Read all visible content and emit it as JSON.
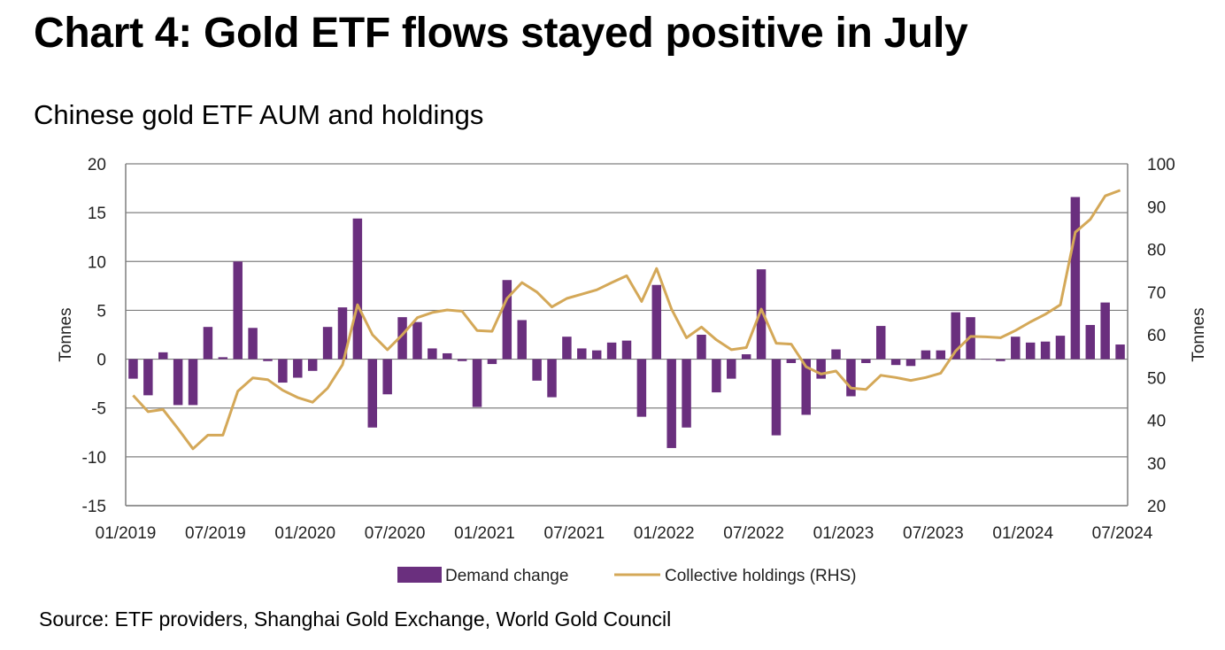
{
  "header": {
    "title": "Chart 4: Gold ETF flows stayed positive in July",
    "subtitle": "Chinese gold ETF AUM and holdings"
  },
  "footer": {
    "source": "Source: ETF providers, Shanghai Gold Exchange, World Gold Council"
  },
  "colors": {
    "bars": "#6a2f7e",
    "line": "#d4a858",
    "grid": "#808080",
    "axis": "#7f7f7f"
  },
  "chart_data": {
    "type": "bar",
    "title": "Chart 4: Gold ETF flows stayed positive in July",
    "subtitle": "Chinese gold ETF AUM and holdings",
    "ylabel": "Tonnes",
    "y2label": "Tonnes",
    "ylim": [
      -15,
      20
    ],
    "y2lim": [
      20,
      100
    ],
    "yticks": [
      "20",
      "15",
      "10",
      "5",
      "0",
      "-5",
      "-10",
      "-15"
    ],
    "y2ticks": [
      "100",
      "90",
      "80",
      "70",
      "60",
      "50",
      "40",
      "30",
      "20"
    ],
    "xtick_labels": [
      "01/2019",
      "07/2019",
      "01/2020",
      "07/2020",
      "01/2021",
      "07/2021",
      "01/2022",
      "07/2022",
      "01/2023",
      "07/2023",
      "01/2024",
      "07/2024"
    ],
    "categories": [
      "01/2019",
      "02/2019",
      "03/2019",
      "04/2019",
      "05/2019",
      "06/2019",
      "07/2019",
      "08/2019",
      "09/2019",
      "10/2019",
      "11/2019",
      "12/2019",
      "01/2020",
      "02/2020",
      "03/2020",
      "04/2020",
      "05/2020",
      "06/2020",
      "07/2020",
      "08/2020",
      "09/2020",
      "10/2020",
      "11/2020",
      "12/2020",
      "01/2021",
      "02/2021",
      "03/2021",
      "04/2021",
      "05/2021",
      "06/2021",
      "07/2021",
      "08/2021",
      "09/2021",
      "10/2021",
      "11/2021",
      "12/2021",
      "01/2022",
      "02/2022",
      "03/2022",
      "04/2022",
      "05/2022",
      "06/2022",
      "07/2022",
      "08/2022",
      "09/2022",
      "10/2022",
      "11/2022",
      "12/2022",
      "01/2023",
      "02/2023",
      "03/2023",
      "04/2023",
      "05/2023",
      "06/2023",
      "07/2023",
      "08/2023",
      "09/2023",
      "10/2023",
      "11/2023",
      "12/2023",
      "01/2024",
      "02/2024",
      "03/2024",
      "04/2024",
      "05/2024",
      "06/2024",
      "07/2024"
    ],
    "series": [
      {
        "name": "Demand change",
        "type": "bar",
        "axis": "left",
        "values": [
          -2.0,
          -3.7,
          0.7,
          -4.7,
          -4.7,
          3.3,
          0.2,
          10.0,
          3.2,
          -0.2,
          -2.4,
          -1.9,
          -1.2,
          3.3,
          5.3,
          14.4,
          -7.0,
          -3.6,
          4.3,
          3.8,
          1.1,
          0.6,
          -0.2,
          -4.9,
          -0.5,
          8.1,
          4.0,
          -2.2,
          -3.9,
          2.3,
          1.1,
          0.9,
          1.7,
          1.9,
          -5.9,
          7.6,
          -9.1,
          -7.0,
          2.5,
          -3.4,
          -2.0,
          0.5,
          9.2,
          -7.8,
          -0.4,
          -5.7,
          -2.0,
          1.0,
          -3.8,
          -0.4,
          3.4,
          -0.6,
          -0.7,
          0.9,
          0.9,
          4.8,
          4.3,
          0.0,
          -0.2,
          2.3,
          1.7,
          1.8,
          2.4,
          16.6,
          3.5,
          5.8,
          1.5
        ]
      },
      {
        "name": "Collective holdings (RHS)",
        "type": "line",
        "axis": "right",
        "values": [
          45.8,
          42.0,
          42.5,
          38.0,
          33.3,
          36.5,
          36.5,
          46.8,
          49.9,
          49.5,
          47.0,
          45.3,
          44.2,
          47.5,
          53.0,
          67.0,
          60.0,
          56.5,
          60.0,
          64.0,
          65.2,
          65.8,
          65.5,
          61.0,
          60.8,
          68.5,
          72.2,
          70.0,
          66.5,
          68.5,
          69.5,
          70.5,
          72.2,
          73.8,
          67.8,
          75.5,
          66.0,
          59.3,
          61.8,
          58.8,
          56.5,
          57.0,
          66.0,
          58.0,
          57.8,
          52.5,
          50.8,
          51.5,
          47.5,
          47.2,
          50.5,
          50.0,
          49.3,
          50.0,
          51.0,
          56.2,
          59.6,
          59.5,
          59.3,
          61.0,
          63.0,
          64.8,
          67.0,
          84.0,
          87.0,
          92.5,
          93.8
        ]
      }
    ],
    "legend": "bottom",
    "grid": true
  }
}
